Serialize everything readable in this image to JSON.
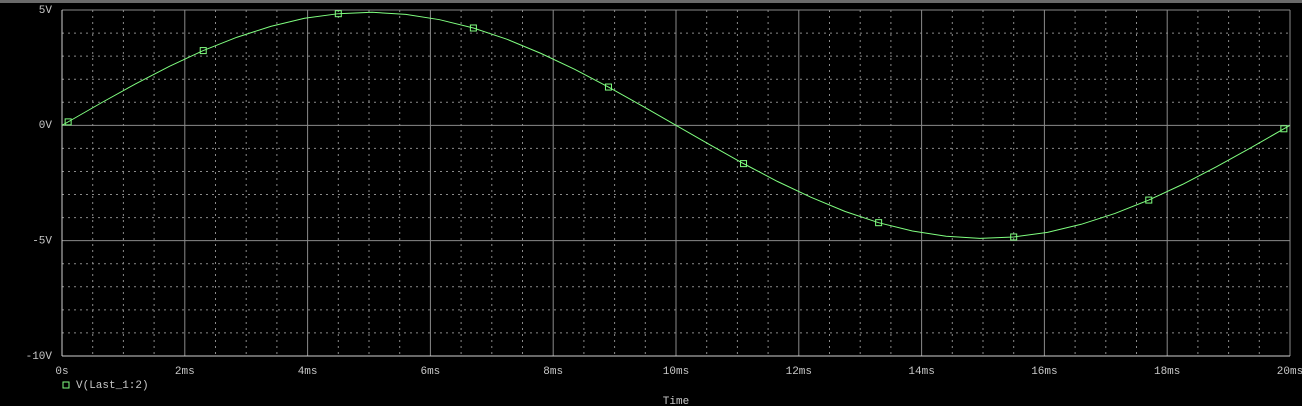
{
  "chart_data": {
    "type": "line",
    "x_label": "Time",
    "x": [
      0,
      0.1,
      0.65,
      1.2,
      1.75,
      2.3,
      2.85,
      3.4,
      3.95,
      4.5,
      5.05,
      5.6,
      6.15,
      6.7,
      7.25,
      7.8,
      8.35,
      8.9,
      9.45,
      10.0,
      10.55,
      11.1,
      11.65,
      12.2,
      12.75,
      13.3,
      13.85,
      14.4,
      14.95,
      15.5,
      16.05,
      16.6,
      17.15,
      17.7,
      18.25,
      18.8,
      19.35,
      19.9,
      20
    ],
    "series": [
      {
        "name": "V(Last_1:2)",
        "color": "#80ff80",
        "values": [
          0,
          0.15,
          0.99,
          1.8,
          2.56,
          3.24,
          3.82,
          4.29,
          4.64,
          4.84,
          4.9,
          4.81,
          4.58,
          4.22,
          3.73,
          3.12,
          2.43,
          1.66,
          0.84,
          0,
          -0.84,
          -1.66,
          -2.43,
          -3.12,
          -3.73,
          -4.22,
          -4.58,
          -4.81,
          -4.9,
          -4.84,
          -4.64,
          -4.29,
          -3.82,
          -3.24,
          -2.56,
          -1.8,
          -0.99,
          -0.15,
          0
        ]
      }
    ],
    "xlim": [
      0,
      20
    ],
    "xticks": [
      {
        "value": 0,
        "label": "0s"
      },
      {
        "value": 2,
        "label": "2ms"
      },
      {
        "value": 4,
        "label": "4ms"
      },
      {
        "value": 6,
        "label": "6ms"
      },
      {
        "value": 8,
        "label": "8ms"
      },
      {
        "value": 10,
        "label": "10ms"
      },
      {
        "value": 12,
        "label": "12ms"
      },
      {
        "value": 14,
        "label": "14ms"
      },
      {
        "value": 16,
        "label": "16ms"
      },
      {
        "value": 18,
        "label": "18ms"
      },
      {
        "value": 20,
        "label": "20ms"
      }
    ],
    "ylim": [
      -10,
      5
    ],
    "yticks": [
      {
        "value": 5,
        "label": "5V"
      },
      {
        "value": 0,
        "label": "0V"
      },
      {
        "value": -5,
        "label": "-5V"
      },
      {
        "value": -10,
        "label": "-10V"
      }
    ],
    "grid": true
  }
}
